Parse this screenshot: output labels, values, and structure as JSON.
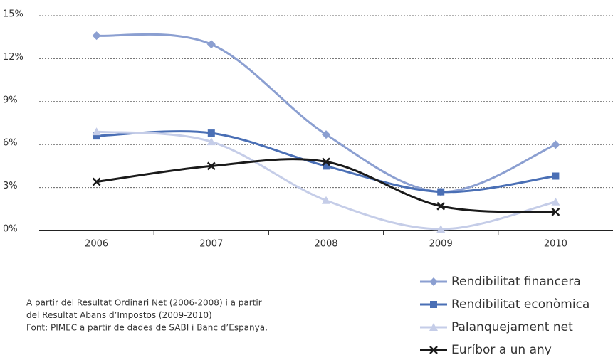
{
  "chart_data": {
    "type": "line",
    "categories": [
      "2006",
      "2007",
      "2008",
      "2009",
      "2010"
    ],
    "series": [
      {
        "name": "Rendibilitat financera",
        "color": "#8b9fd1",
        "marker": "diamond",
        "values": [
          13.6,
          13.0,
          6.7,
          2.7,
          6.0
        ]
      },
      {
        "name": "Rendibilitat econòmica",
        "color": "#4a6fb5",
        "marker": "square",
        "values": [
          6.6,
          6.8,
          4.5,
          2.7,
          3.8
        ]
      },
      {
        "name": "Palanquejament net",
        "color": "#c5cde8",
        "marker": "triangle",
        "values": [
          6.9,
          6.2,
          2.1,
          0.1,
          2.0
        ]
      },
      {
        "name": "Euríbor a un any",
        "color": "#1a1a1a",
        "marker": "x",
        "values": [
          3.4,
          4.5,
          4.8,
          1.7,
          1.3
        ]
      }
    ],
    "ylim": [
      0,
      15
    ],
    "yticks": [
      {
        "value": 0,
        "label": "0%"
      },
      {
        "value": 3,
        "label": "3%"
      },
      {
        "value": 6,
        "label": "6%"
      },
      {
        "value": 9,
        "label": "9%"
      },
      {
        "value": 12,
        "label": "12%"
      },
      {
        "value": 15,
        "label": "15%"
      }
    ],
    "grid": true,
    "legend": "bottom-right",
    "notes": [
      "A partir del Resultat Ordinari Net (2006-2008) i a partir",
      "del Resultat Abans d’Impostos (2009-2010)",
      "Font: PIMEC a partir de dades de SABI i Banc d’Espanya."
    ]
  }
}
